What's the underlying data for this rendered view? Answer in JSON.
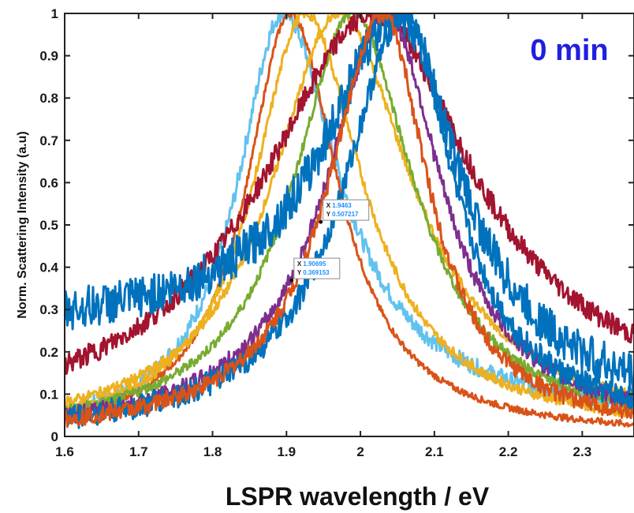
{
  "chart_data": {
    "type": "line",
    "title": "",
    "annotation": "0 min",
    "xlabel": "LSPR wavelength / eV",
    "ylabel": "Norm. Scattering Intensity (a.u)",
    "xlim": [
      1.6,
      2.37
    ],
    "ylim": [
      0,
      1
    ],
    "xticks": [
      "1.6",
      "1.7",
      "1.8",
      "1.9",
      "2",
      "2.1",
      "2.2",
      "2.3"
    ],
    "yticks": [
      "0",
      "0.1",
      "0.2",
      "0.3",
      "0.4",
      "0.5",
      "0.6",
      "0.7",
      "0.8",
      "0.9",
      "1"
    ],
    "grid": false,
    "colors": {
      "annotation": "#1f1fe0",
      "datatip_x": "#1a1a1a",
      "datatip_y": "#1e90ff",
      "series": [
        "#62C2EE",
        "#D95319",
        "#EDB120",
        "#EDB120",
        "#77AC30",
        "#A2142F",
        "#7E2F8E",
        "#0072BD",
        "#0072BD",
        "#D95319"
      ]
    },
    "series": [
      {
        "center": 1.895,
        "width_left": 0.075,
        "width_right": 0.09,
        "baseline_left": 0.0,
        "tail": 0.11,
        "noise": 0.02
      },
      {
        "center": 1.905,
        "width_left": 0.072,
        "width_right": 0.08,
        "baseline_left": 0.0,
        "tail": 0.0,
        "noise": 0.008
      },
      {
        "center": 1.925,
        "width_left": 0.085,
        "width_right": 0.095,
        "baseline_left": 0.0,
        "tail": 0.03,
        "noise": 0.012
      },
      {
        "center": 1.97,
        "width_left": 0.11,
        "width_right": 0.12,
        "baseline_left": 0.0,
        "tail": 0.04,
        "noise": 0.012
      },
      {
        "center": 1.99,
        "width_left": 0.1,
        "width_right": 0.1,
        "baseline_left": 0.0,
        "tail": 0.02,
        "noise": 0.012
      },
      {
        "center": 2.02,
        "width_left": 0.19,
        "width_right": 0.15,
        "baseline_left": 0.0,
        "tail": 0.2,
        "noise": 0.025
      },
      {
        "center": 2.035,
        "width_left": 0.1,
        "width_right": 0.09,
        "baseline_left": 0.0,
        "tail": 0.03,
        "noise": 0.02
      },
      {
        "center": 2.05,
        "width_left": 0.12,
        "width_right": 0.1,
        "baseline_left": 0.25,
        "tail": 0.12,
        "noise": 0.05
      },
      {
        "center": 2.06,
        "width_left": 0.1,
        "width_right": 0.08,
        "baseline_left": 0.0,
        "tail": 0.05,
        "noise": 0.03
      },
      {
        "center": 2.03,
        "width_left": 0.09,
        "width_right": 0.075,
        "baseline_left": 0.0,
        "tail": 0.02,
        "noise": 0.02
      }
    ],
    "datatips": [
      {
        "x_label": "X",
        "x_value": "1.9463",
        "y_label": "Y",
        "y_value": "0.507217",
        "x": 1.9463,
        "y": 0.507217
      },
      {
        "x_label": "X",
        "x_value": "1.90695",
        "y_label": "Y",
        "y_value": "0.369153",
        "x": 1.90695,
        "y": 0.369153
      }
    ]
  }
}
